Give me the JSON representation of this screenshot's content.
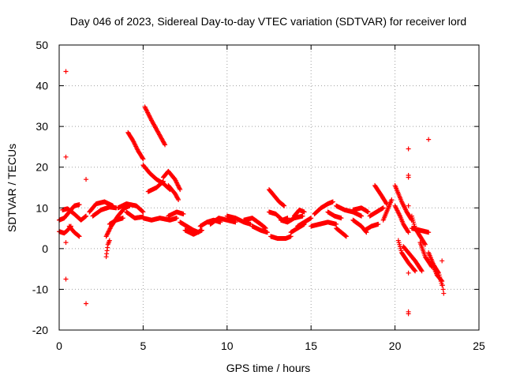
{
  "chart_data": {
    "type": "scatter",
    "title": "Day 046 of 2023, Sidereal Day-to-day VTEC variation (SDTVAR) for receiver lord",
    "xlabel": "GPS time / hours",
    "ylabel": "SDTVAR / TECUs",
    "xlim": [
      0,
      25
    ],
    "ylim": [
      -20,
      50
    ],
    "xticks": [
      0,
      5,
      10,
      15,
      20,
      25
    ],
    "yticks": [
      -20,
      -10,
      0,
      10,
      20,
      30,
      40,
      50
    ],
    "x_tick_labels": [
      "0",
      "5",
      "10",
      "15",
      "20",
      "25"
    ],
    "y_tick_labels": [
      "-20",
      "-10",
      "0",
      "10",
      "20",
      "30",
      "40",
      "50"
    ],
    "grid": true,
    "marker": "+",
    "color": "#ff0000",
    "series": [
      {
        "name": "SDTVAR",
        "tracks": [
          [
            [
              0.0,
              4.2
            ],
            [
              0.3,
              3.8
            ],
            [
              0.5,
              4.5
            ],
            [
              0.7,
              5.5
            ]
          ],
          [
            [
              0.0,
              7.0
            ],
            [
              0.3,
              7.5
            ],
            [
              0.6,
              9.0
            ],
            [
              0.9,
              10.5
            ],
            [
              1.2,
              10.8
            ]
          ],
          [
            [
              0.2,
              9.5
            ],
            [
              0.5,
              9.8
            ],
            [
              0.9,
              8.5
            ],
            [
              1.3,
              7.0
            ],
            [
              1.6,
              8.0
            ]
          ],
          [
            [
              0.6,
              5.5
            ],
            [
              0.9,
              4.0
            ],
            [
              1.2,
              3.0
            ]
          ],
          [
            [
              1.8,
              9.0
            ],
            [
              2.2,
              11.0
            ],
            [
              2.7,
              11.5
            ],
            [
              3.2,
              10.5
            ]
          ],
          [
            [
              2.0,
              8.0
            ],
            [
              2.5,
              9.5
            ],
            [
              3.0,
              10.2
            ],
            [
              3.4,
              10.0
            ]
          ],
          [
            [
              2.8,
              -2.0
            ],
            [
              2.85,
              -0.5
            ],
            [
              2.9,
              1.0
            ],
            [
              3.0,
              2.0
            ]
          ],
          [
            [
              2.8,
              3.0
            ],
            [
              3.1,
              5.5
            ],
            [
              3.5,
              8.0
            ],
            [
              3.9,
              10.0
            ],
            [
              4.2,
              10.5
            ]
          ],
          [
            [
              3.0,
              6.0
            ],
            [
              3.4,
              7.0
            ],
            [
              3.8,
              7.5
            ]
          ],
          [
            [
              3.5,
              10.0
            ],
            [
              4.0,
              11.0
            ],
            [
              4.6,
              10.5
            ],
            [
              5.0,
              9.0
            ]
          ],
          [
            [
              4.0,
              9.0
            ],
            [
              4.5,
              7.5
            ],
            [
              5.0,
              7.8
            ]
          ],
          [
            [
              4.1,
              28.5
            ],
            [
              4.4,
              26.5
            ],
            [
              4.7,
              24.0
            ],
            [
              5.0,
              22.0
            ]
          ],
          [
            [
              5.1,
              34.8
            ],
            [
              5.5,
              31.5
            ],
            [
              5.9,
              28.5
            ],
            [
              6.3,
              25.5
            ]
          ],
          [
            [
              5.0,
              20.5
            ],
            [
              5.4,
              18.5
            ],
            [
              5.8,
              17.0
            ],
            [
              6.2,
              16.0
            ],
            [
              6.6,
              14.5
            ]
          ],
          [
            [
              5.3,
              14.0
            ],
            [
              5.8,
              15.0
            ],
            [
              6.2,
              16.5
            ]
          ],
          [
            [
              6.2,
              17.5
            ],
            [
              6.5,
              19.0
            ],
            [
              6.9,
              17.0
            ],
            [
              7.2,
              14.5
            ]
          ],
          [
            [
              6.5,
              15.5
            ],
            [
              6.9,
              13.5
            ],
            [
              7.1,
              12.0
            ]
          ],
          [
            [
              5.0,
              7.5
            ],
            [
              5.5,
              7.0
            ],
            [
              6.0,
              7.5
            ],
            [
              6.6,
              7.0
            ],
            [
              7.0,
              7.5
            ]
          ],
          [
            [
              6.5,
              8.0
            ],
            [
              7.0,
              9.0
            ],
            [
              7.4,
              8.5
            ]
          ],
          [
            [
              7.2,
              6.5
            ],
            [
              7.6,
              5.5
            ],
            [
              8.0,
              4.5
            ],
            [
              8.3,
              4.0
            ]
          ],
          [
            [
              7.5,
              4.5
            ],
            [
              8.0,
              3.5
            ],
            [
              8.5,
              4.5
            ]
          ],
          [
            [
              8.4,
              5.5
            ],
            [
              8.8,
              6.5
            ],
            [
              9.2,
              7.0
            ],
            [
              9.6,
              6.5
            ]
          ],
          [
            [
              9.0,
              6.0
            ],
            [
              9.5,
              7.5
            ],
            [
              10.0,
              7.0
            ],
            [
              10.5,
              6.5
            ]
          ],
          [
            [
              10.0,
              8.0
            ],
            [
              10.5,
              7.5
            ],
            [
              11.0,
              6.5
            ],
            [
              11.4,
              6.0
            ]
          ],
          [
            [
              11.0,
              7.0
            ],
            [
              11.5,
              7.5
            ],
            [
              12.0,
              6.0
            ],
            [
              12.3,
              5.0
            ]
          ],
          [
            [
              11.5,
              5.5
            ],
            [
              12.0,
              4.5
            ],
            [
              12.4,
              4.0
            ]
          ],
          [
            [
              12.5,
              14.5
            ],
            [
              12.8,
              13.0
            ],
            [
              13.1,
              11.5
            ],
            [
              13.4,
              10.5
            ]
          ],
          [
            [
              12.5,
              9.0
            ],
            [
              12.9,
              8.5
            ],
            [
              13.3,
              7.0
            ],
            [
              13.6,
              7.5
            ]
          ],
          [
            [
              12.6,
              3.0
            ],
            [
              13.0,
              2.5
            ],
            [
              13.5,
              2.5
            ],
            [
              13.8,
              3.0
            ]
          ],
          [
            [
              13.2,
              7.0
            ],
            [
              13.6,
              6.5
            ],
            [
              14.0,
              7.5
            ],
            [
              14.5,
              8.0
            ]
          ],
          [
            [
              13.8,
              4.0
            ],
            [
              14.2,
              5.0
            ],
            [
              14.6,
              6.0
            ]
          ],
          [
            [
              14.0,
              8.0
            ],
            [
              14.3,
              9.5
            ],
            [
              14.6,
              9.0
            ]
          ],
          [
            [
              14.2,
              5.5
            ],
            [
              14.6,
              6.5
            ],
            [
              15.0,
              7.5
            ]
          ],
          [
            [
              15.0,
              5.5
            ],
            [
              15.5,
              6.0
            ],
            [
              16.0,
              6.5
            ],
            [
              16.5,
              6.0
            ]
          ],
          [
            [
              15.2,
              8.5
            ],
            [
              15.6,
              10.0
            ],
            [
              16.0,
              11.0
            ],
            [
              16.3,
              11.5
            ]
          ],
          [
            [
              16.0,
              9.0
            ],
            [
              16.4,
              8.0
            ],
            [
              16.8,
              7.5
            ]
          ],
          [
            [
              16.5,
              5.0
            ],
            [
              16.8,
              4.0
            ],
            [
              17.1,
              3.0
            ]
          ],
          [
            [
              16.5,
              10.5
            ],
            [
              17.0,
              9.5
            ],
            [
              17.5,
              9.0
            ],
            [
              18.0,
              8.0
            ]
          ],
          [
            [
              17.5,
              9.5
            ],
            [
              18.0,
              10.0
            ],
            [
              18.4,
              9.0
            ]
          ],
          [
            [
              17.5,
              7.0
            ],
            [
              18.0,
              5.5
            ],
            [
              18.3,
              4.0
            ]
          ],
          [
            [
              18.2,
              4.5
            ],
            [
              18.6,
              5.5
            ],
            [
              19.0,
              6.0
            ]
          ],
          [
            [
              18.5,
              8.0
            ],
            [
              18.9,
              9.0
            ],
            [
              19.3,
              10.0
            ]
          ],
          [
            [
              18.8,
              15.5
            ],
            [
              19.2,
              13.0
            ],
            [
              19.5,
              11.0
            ]
          ],
          [
            [
              19.3,
              7.0
            ],
            [
              19.5,
              9.0
            ],
            [
              19.8,
              12.0
            ]
          ],
          [
            [
              20.0,
              15.5
            ],
            [
              20.2,
              13.5
            ],
            [
              20.4,
              11.5
            ],
            [
              20.7,
              9.0
            ],
            [
              21.0,
              7.0
            ]
          ],
          [
            [
              20.0,
              10.5
            ],
            [
              20.3,
              8.0
            ],
            [
              20.5,
              6.0
            ],
            [
              20.8,
              4.0
            ]
          ],
          [
            [
              20.2,
              2.0
            ],
            [
              20.4,
              -1.0
            ],
            [
              20.8,
              -3.5
            ],
            [
              21.2,
              -5.5
            ]
          ],
          [
            [
              20.5,
              0.5
            ],
            [
              20.8,
              -1.0
            ],
            [
              21.2,
              -3.0
            ],
            [
              21.6,
              -5.5
            ]
          ],
          [
            [
              21.0,
              8.0
            ],
            [
              21.2,
              5.0
            ],
            [
              21.5,
              3.0
            ],
            [
              21.8,
              1.0
            ]
          ],
          [
            [
              21.0,
              5.0
            ],
            [
              21.5,
              4.5
            ],
            [
              22.0,
              4.0
            ]
          ],
          [
            [
              21.5,
              1.5
            ],
            [
              21.8,
              -2.0
            ],
            [
              22.2,
              -4.5
            ]
          ],
          [
            [
              22.0,
              -1.0
            ],
            [
              22.3,
              -4.0
            ],
            [
              22.6,
              -6.0
            ],
            [
              22.8,
              -9.0
            ]
          ],
          [
            [
              22.2,
              -3.5
            ],
            [
              22.5,
              -6.5
            ],
            [
              22.8,
              -8.0
            ],
            [
              22.9,
              -11.0
            ]
          ]
        ],
        "points": [
          [
            0.4,
            43.5
          ],
          [
            0.4,
            22.5
          ],
          [
            0.4,
            -7.5
          ],
          [
            0.4,
            1.5
          ],
          [
            1.6,
            17.0
          ],
          [
            1.6,
            -13.5
          ],
          [
            20.8,
            24.5
          ],
          [
            20.8,
            18.0
          ],
          [
            20.8,
            17.5
          ],
          [
            20.8,
            10.5
          ],
          [
            20.8,
            -6.0
          ],
          [
            20.8,
            -16.0
          ],
          [
            20.8,
            -15.5
          ],
          [
            22.0,
            26.8
          ],
          [
            22.8,
            -3.0
          ],
          [
            21.0,
            7.5
          ]
        ]
      }
    ]
  }
}
